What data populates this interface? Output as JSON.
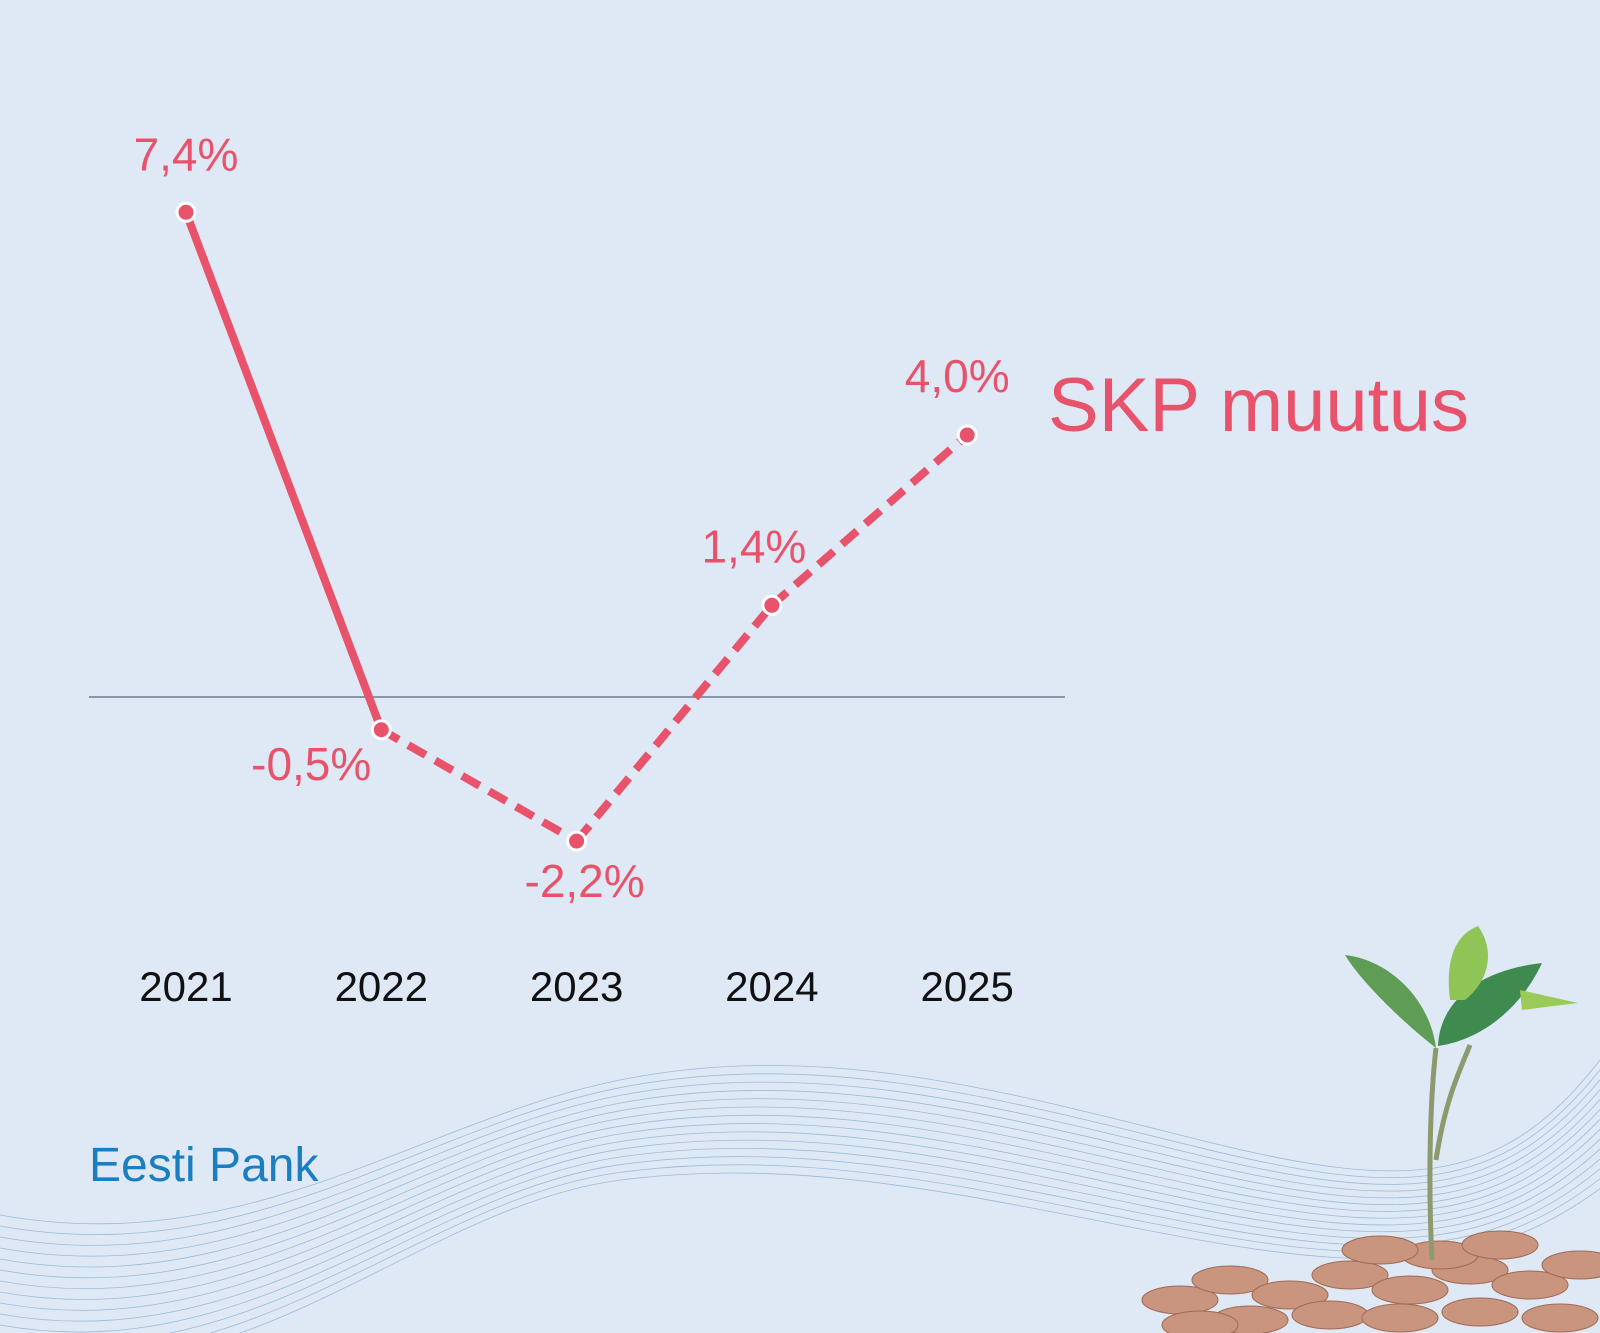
{
  "chart_data": {
    "type": "line",
    "title": "SKP muutus",
    "categories": [
      "2021",
      "2022",
      "2023",
      "2024",
      "2025"
    ],
    "values": [
      7.4,
      -0.5,
      -2.2,
      1.4,
      4.0
    ],
    "data_labels": [
      "7,4%",
      "-0,5%",
      "-2,2%",
      "1,4%",
      "4,0%"
    ],
    "line_style": [
      "solid",
      "dashed",
      "dashed",
      "dashed"
    ],
    "zero_line": true,
    "grid": false,
    "color": "#e8526b"
  },
  "brand": "Eesti Pank",
  "colors": {
    "background": "#dfe8f5",
    "brand": "#1a7fc1",
    "zero_line": "#6b7a8c",
    "year_labels": "#111111"
  }
}
